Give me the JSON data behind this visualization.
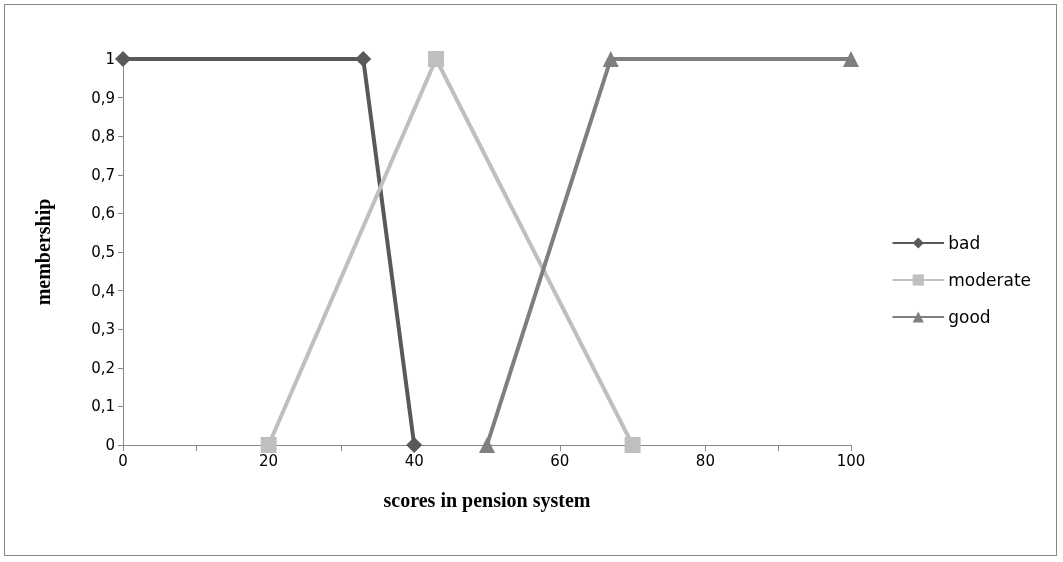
{
  "chart_data": {
    "type": "line",
    "xlabel": "scores in pension system",
    "ylabel": "membership",
    "xlim": [
      0,
      100
    ],
    "xticks": [
      0,
      {
        "value": 10,
        "label": null
      },
      20,
      {
        "value": 30,
        "label": null
      },
      40,
      {
        "value": 50,
        "label": null
      },
      60,
      {
        "value": 70,
        "label": null
      },
      80,
      {
        "value": 90,
        "label": null
      },
      100
    ],
    "ylim": [
      0,
      1
    ],
    "yticks": [
      0,
      {
        "value": 0.1,
        "label": "0,1"
      },
      {
        "value": 0.2,
        "label": "0,2"
      },
      {
        "value": 0.3,
        "label": "0,3"
      },
      {
        "value": 0.4,
        "label": "0,4"
      },
      {
        "value": 0.5,
        "label": "0,5"
      },
      {
        "value": 0.6,
        "label": "0,6"
      },
      {
        "value": 0.7,
        "label": "0,7"
      },
      {
        "value": 0.8,
        "label": "0,8"
      },
      {
        "value": 0.9,
        "label": "0,9"
      },
      1
    ],
    "grid": false,
    "legend": "right",
    "line_style": "solid",
    "series": [
      {
        "name": "bad",
        "color": "#595959",
        "marker": "diamond",
        "x": [
          0,
          33,
          40
        ],
        "values": [
          1,
          1,
          0
        ]
      },
      {
        "name": "moderate",
        "color": "#bfbfbf",
        "marker": "square",
        "x": [
          20,
          43,
          70
        ],
        "values": [
          0,
          1,
          0
        ]
      },
      {
        "name": "good",
        "color": "#7f7f7f",
        "marker": "triangle",
        "x": [
          50,
          67,
          100
        ],
        "values": [
          0,
          1,
          1
        ]
      }
    ]
  }
}
